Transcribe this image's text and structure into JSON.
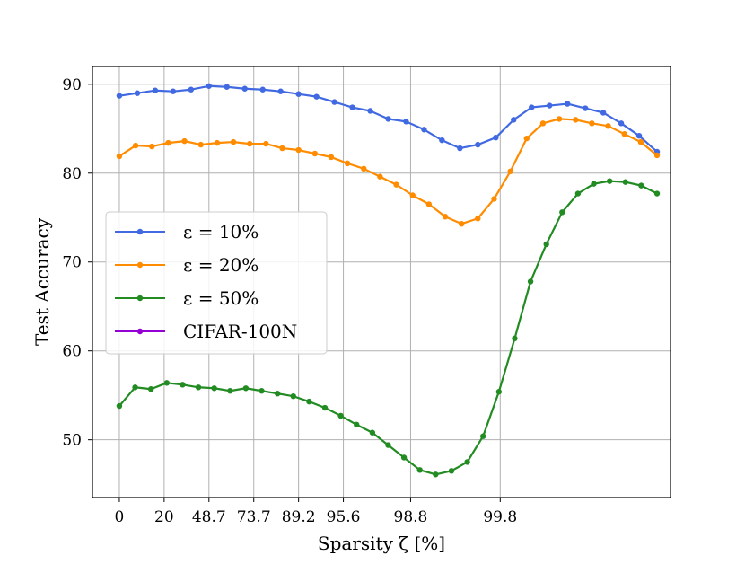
{
  "chart_data": {
    "type": "line",
    "xlabel": "Sparsity ζ [%]",
    "ylabel": "Test Accuracy",
    "x_tick_labels": [
      "0",
      "20",
      "48.7",
      "73.7",
      "89.2",
      "95.6",
      "98.8",
      "99.8"
    ],
    "x_tick_positions": [
      0,
      2,
      4,
      6,
      8,
      10,
      13,
      17
    ],
    "y_ticks": [
      50,
      60,
      70,
      80,
      90
    ],
    "ylim": [
      43.5,
      92
    ],
    "xlim": [
      -1.2,
      24.6
    ],
    "grid": true,
    "legend_position": "center-left",
    "x_index": [
      0,
      2,
      4,
      5,
      6,
      7,
      8,
      8.75,
      9.5,
      10.25,
      11,
      11.5,
      12,
      12.5,
      13,
      13.5,
      14,
      14.5,
      15,
      15.5,
      16,
      16.5,
      17,
      17.5,
      18,
      18.5,
      19,
      19.5,
      20,
      20.5,
      21,
      21.5,
      22,
      22.5,
      23,
      23.5,
      24
    ],
    "series": [
      {
        "name": "ε = 10%",
        "color": "#4169e1",
        "values": [
          88.7,
          89.0,
          89.3,
          89.2,
          89.4,
          89.8,
          89.7,
          89.5,
          89.4,
          89.2,
          88.9,
          88.6,
          88.0,
          87.4,
          87.0,
          86.1,
          85.8,
          84.9,
          83.7,
          82.8,
          83.2,
          84.0,
          86.0,
          87.4,
          87.6,
          87.8,
          87.3,
          86.8,
          85.6,
          84.2,
          82.4
        ]
      },
      {
        "name": "ε = 20%",
        "color": "#ff8c00",
        "values": [
          81.9,
          83.1,
          83.0,
          83.4,
          83.6,
          83.2,
          83.4,
          83.5,
          83.3,
          83.3,
          82.8,
          82.6,
          82.2,
          81.8,
          81.1,
          80.5,
          79.6,
          78.7,
          77.5,
          76.5,
          75.1,
          74.3,
          74.9,
          77.1,
          80.2,
          83.9,
          85.6,
          86.1,
          86.0,
          85.6,
          85.3,
          84.4,
          83.5,
          82.0
        ]
      },
      {
        "name": "ε = 50%",
        "color": "#228b22",
        "values": [
          53.8,
          55.9,
          55.7,
          56.4,
          56.2,
          55.9,
          55.8,
          55.5,
          55.8,
          55.5,
          55.2,
          54.9,
          54.3,
          53.6,
          52.7,
          51.7,
          50.8,
          49.4,
          48.0,
          46.6,
          46.1,
          46.5,
          47.5,
          50.4,
          55.4,
          61.4,
          67.8,
          72.0,
          75.6,
          77.7,
          78.8,
          79.1,
          79.0,
          78.6,
          77.7
        ]
      },
      {
        "name": "CIFAR-100N",
        "color": "#9400d3",
        "values": []
      }
    ]
  }
}
